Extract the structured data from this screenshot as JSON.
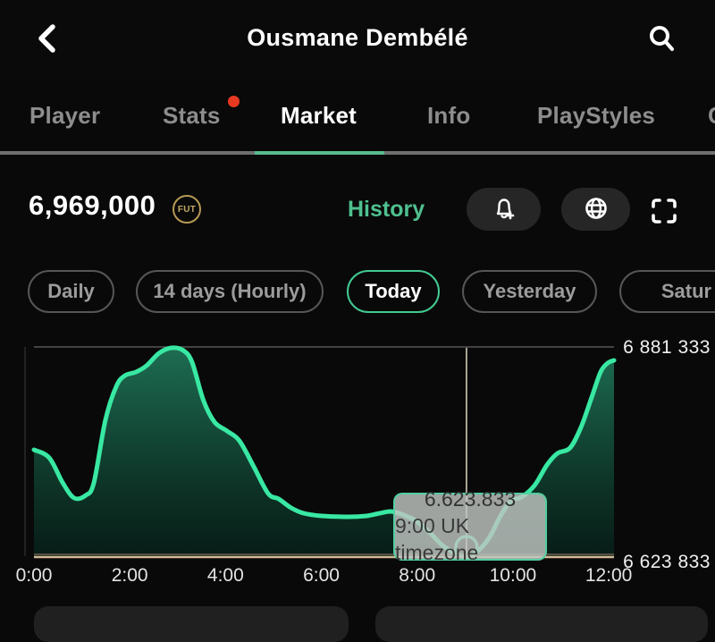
{
  "header": {
    "title": "Ousmane Dembélé"
  },
  "tabs": {
    "items": [
      {
        "label": "Player"
      },
      {
        "label": "Stats"
      },
      {
        "label": "Market"
      },
      {
        "label": "Info"
      },
      {
        "label": "PlayStyles"
      },
      {
        "label": "C"
      }
    ]
  },
  "market": {
    "price": "6,969,000",
    "coin_label": "FUT",
    "history_label": "History",
    "filters": [
      {
        "label": "Daily"
      },
      {
        "label": "14 days (Hourly)"
      },
      {
        "label": "Today"
      },
      {
        "label": "Yesterday"
      },
      {
        "label": "Satur"
      }
    ]
  },
  "chart_data": {
    "type": "area",
    "series": [
      {
        "name": "price",
        "points": [
          [
            0.0,
            6754800
          ],
          [
            0.32,
            6744900
          ],
          [
            0.6,
            6714100
          ],
          [
            0.84,
            6695400
          ],
          [
            1.08,
            6698700
          ],
          [
            1.25,
            6714100
          ],
          [
            1.49,
            6791100
          ],
          [
            1.72,
            6832900
          ],
          [
            1.9,
            6846100
          ],
          [
            2.13,
            6850500
          ],
          [
            2.35,
            6858200
          ],
          [
            2.61,
            6873600
          ],
          [
            2.87,
            6880200
          ],
          [
            3.12,
            6876900
          ],
          [
            3.3,
            6862600
          ],
          [
            3.54,
            6815300
          ],
          [
            3.77,
            6788900
          ],
          [
            4.03,
            6777900
          ],
          [
            4.29,
            6765800
          ],
          [
            4.59,
            6733900
          ],
          [
            4.89,
            6700900
          ],
          [
            5.11,
            6694300
          ],
          [
            5.37,
            6683300
          ],
          [
            5.63,
            6676700
          ],
          [
            6.01,
            6673400
          ],
          [
            6.57,
            6672300
          ],
          [
            6.94,
            6673400
          ],
          [
            7.22,
            6676700
          ],
          [
            7.46,
            6678900
          ],
          [
            7.72,
            6674500
          ],
          [
            7.99,
            6666800
          ],
          [
            8.25,
            6653600
          ],
          [
            8.53,
            6637100
          ],
          [
            8.81,
            6627200
          ],
          [
            9.03,
            6623833
          ],
          [
            9.27,
            6630500
          ],
          [
            9.51,
            6647000
          ],
          [
            9.74,
            6673400
          ],
          [
            9.96,
            6692100
          ],
          [
            10.18,
            6696500
          ],
          [
            10.45,
            6710800
          ],
          [
            10.71,
            6736100
          ],
          [
            10.93,
            6750400
          ],
          [
            11.19,
            6757000
          ],
          [
            11.42,
            6782300
          ],
          [
            11.64,
            6818600
          ],
          [
            11.83,
            6850500
          ],
          [
            11.98,
            6861500
          ],
          [
            12.11,
            6864800
          ]
        ]
      }
    ],
    "x_axis": {
      "ticks": [
        "0:00",
        "2:00",
        "4:00",
        "6:00",
        "8:00",
        "10:00",
        "12:00"
      ],
      "tick_hours": [
        0,
        2,
        4,
        6,
        8,
        10,
        12
      ],
      "range": [
        0,
        12.11
      ]
    },
    "y_axis": {
      "top_label": "6 881 333",
      "bottom_label": "6 623 833",
      "range": [
        6623833,
        6881333
      ]
    },
    "tooltip": {
      "value": "6.623.833",
      "label": "9:00 UK timezone",
      "hour": 9.03
    },
    "grid": "top-line-only",
    "legend": "none",
    "colors": {
      "line": "#38e8a3",
      "fill_top": "#1e7155",
      "fill_bottom": "#07201a",
      "axis": "#d4ba96",
      "axis_shadow": "#87705a",
      "crosshair": "#eadfcb",
      "gridline": "#555555"
    }
  },
  "colors": {
    "accent_teal": "#4fc08f",
    "active_border": "#42ca92",
    "coin_gold": "#b69a54",
    "badge_red": "#e83a21",
    "background": "#090909"
  }
}
